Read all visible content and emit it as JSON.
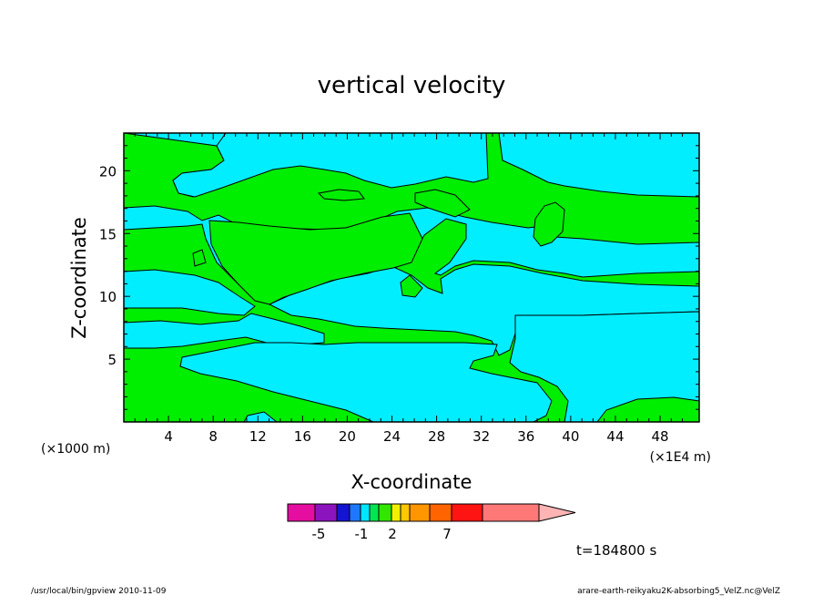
{
  "chart_data": {
    "type": "heatmap",
    "title": "vertical velocity",
    "xlabel": "X-coordinate",
    "ylabel": "Z-coordinate",
    "x_unit_left": "(×1000 m)",
    "x_unit_right": "(×1E4 m)",
    "xlim": [
      0,
      51.5
    ],
    "ylim": [
      0,
      23
    ],
    "x_ticks": [
      "4",
      "8",
      "12",
      "16",
      "20",
      "24",
      "28",
      "32",
      "36",
      "40",
      "44",
      "48"
    ],
    "y_ticks": [
      "5",
      "10",
      "15",
      "20"
    ],
    "colorbar": {
      "labels": [
        "-5",
        "-1",
        "2",
        "7"
      ],
      "colors": [
        "#e60ea0",
        "#8c14be",
        "#1414d2",
        "#1e78ff",
        "#00e6ff",
        "#00e650",
        "#32e600",
        "#f0f000",
        "#ffc800",
        "#ff9600",
        "#ff6400",
        "#ff1414",
        "#ff7878",
        "#ffb4b4"
      ]
    },
    "field_colors": {
      "positive": "#00ee00",
      "negative": "#00eeff"
    },
    "annotation": "t=184800 s",
    "footer_left": "/usr/local/bin/gpview  2010-11-09",
    "footer_right": "arare-earth-reikyaku2K-absorbing5_VelZ.nc@VelZ"
  }
}
